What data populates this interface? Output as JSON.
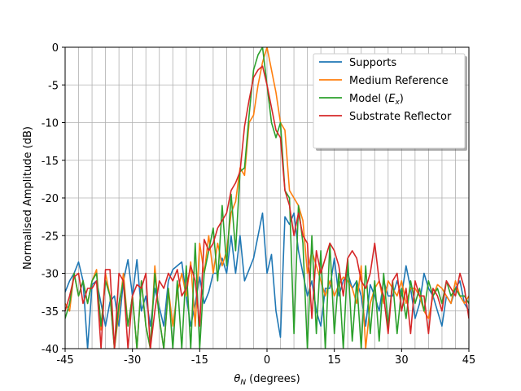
{
  "chart_data": {
    "type": "line",
    "xlabel_symbol": "θ",
    "xlabel_sub": "N",
    "xlabel_rest": " (degrees)",
    "ylabel": "Normalised Amplitude (dB)",
    "xlim": [
      -45,
      45
    ],
    "ylim": [
      -40,
      0
    ],
    "xticks": [
      -45,
      -30,
      -15,
      0,
      15,
      30,
      45
    ],
    "xtick_labels": [
      "-45",
      "-30",
      "-15",
      "0",
      "15",
      "30",
      "45"
    ],
    "yticks": [
      0,
      -5,
      -10,
      -15,
      -20,
      -25,
      -30,
      -35,
      -40
    ],
    "ytick_labels": [
      "0",
      "-5",
      "-10",
      "-15",
      "-20",
      "-25",
      "-30",
      "-35",
      "-40"
    ],
    "grid": true,
    "legend_position": "top-right",
    "series": [
      {
        "name": "Supports",
        "color": "#1f77b4",
        "x": [
          -45,
          -44,
          -43,
          -42,
          -41,
          -40,
          -39,
          -38,
          -37,
          -36,
          -35,
          -34,
          -33,
          -32,
          -31,
          -30,
          -29,
          -28,
          -27,
          -26,
          -25,
          -24,
          -23,
          -22,
          -21,
          -20,
          -19,
          -18,
          -17,
          -16,
          -15,
          -14,
          -13,
          -12,
          -11,
          -10,
          -9,
          -8,
          -7,
          -6,
          -5,
          -4,
          -3,
          -2,
          -1,
          0,
          1,
          2,
          3,
          4,
          5,
          6,
          7,
          8,
          9,
          10,
          11,
          12,
          13,
          14,
          15,
          16,
          17,
          18,
          19,
          20,
          21,
          22,
          23,
          24,
          25,
          26,
          27,
          28,
          29,
          30,
          31,
          32,
          33,
          34,
          35,
          36,
          37,
          38,
          39,
          40,
          41,
          42,
          43,
          44,
          45
        ],
        "y": [
          -32.5,
          -31,
          -30,
          -28.5,
          -31,
          -40,
          -31.5,
          -31,
          -34,
          -37,
          -33.8,
          -33,
          -37,
          -31,
          -28.2,
          -33,
          -28.2,
          -35,
          -33,
          -37,
          -32,
          -34.5,
          -37,
          -31,
          -29.5,
          -29,
          -28.5,
          -33,
          -37,
          -34,
          -30.5,
          -34,
          -32.5,
          -30,
          -30,
          -28,
          -30,
          -25,
          -30,
          -25,
          -31,
          -29.5,
          -28,
          -25,
          -22,
          -30,
          -27.5,
          -35,
          -38.5,
          -22.5,
          -23.5,
          -22,
          -27,
          -30,
          -33,
          -31,
          -35,
          -37,
          -32,
          -32,
          -28,
          -33,
          -31,
          -30,
          -32,
          -31,
          -33,
          -37,
          -31.5,
          -33,
          -35,
          -31,
          -33,
          -33,
          -31,
          -33,
          -29,
          -32,
          -36,
          -34,
          -30,
          -32,
          -33,
          -35,
          -37,
          -33,
          -34,
          -32,
          -31,
          -34,
          -35
        ]
      },
      {
        "name": "Medium Reference",
        "color": "#ff7f0e",
        "x": [
          -45,
          -44,
          -43,
          -42,
          -41,
          -40,
          -39,
          -38,
          -37,
          -36,
          -35,
          -34,
          -33,
          -32,
          -31,
          -30,
          -29,
          -28,
          -27,
          -26,
          -25,
          -24,
          -23,
          -22,
          -21,
          -20,
          -19,
          -18,
          -17,
          -16,
          -15,
          -14,
          -13,
          -12,
          -11,
          -10,
          -9,
          -8,
          -7,
          -6,
          -5,
          -4,
          -3,
          -2,
          -1,
          0,
          1,
          2,
          3,
          4,
          5,
          6,
          7,
          8,
          9,
          10,
          11,
          12,
          13,
          14,
          15,
          16,
          17,
          18,
          19,
          20,
          21,
          22,
          23,
          24,
          25,
          26,
          27,
          28,
          29,
          30,
          31,
          32,
          33,
          34,
          35,
          36,
          37,
          38,
          39,
          40,
          41,
          42,
          43,
          44,
          45
        ],
        "y": [
          -34,
          -35,
          -30,
          -33,
          -31,
          -34,
          -31,
          -29.5,
          -37.5,
          -30,
          -33,
          -40,
          -35,
          -30,
          -37,
          -33,
          -40,
          -31,
          -37,
          -40,
          -29,
          -36,
          -40,
          -32,
          -37,
          -32.5,
          -30,
          -33,
          -28.5,
          -37,
          -26,
          -30,
          -25,
          -30,
          -26,
          -29,
          -27,
          -22,
          -20.5,
          -16,
          -17,
          -10,
          -9,
          -5,
          -2,
          0,
          -3,
          -6,
          -10,
          -11,
          -19,
          -20,
          -21,
          -23,
          -30,
          -27,
          -29,
          -31,
          -33,
          -31,
          -33,
          -31.5,
          -30.5,
          -31,
          -32,
          -34,
          -29,
          -40,
          -34,
          -32,
          -31,
          -34,
          -31,
          -32,
          -33,
          -31,
          -34,
          -32,
          -32,
          -33,
          -35,
          -36,
          -33,
          -31.5,
          -32,
          -33,
          -34,
          -31,
          -33,
          -34,
          -33
        ]
      },
      {
        "name": "Model (E_x)",
        "color": "#2ca02c",
        "x": [
          -45,
          -44,
          -43,
          -42,
          -41,
          -40,
          -39,
          -38,
          -37,
          -36,
          -35,
          -34,
          -33,
          -32,
          -31,
          -30,
          -29,
          -28,
          -27,
          -26,
          -25,
          -24,
          -23,
          -22,
          -21,
          -20,
          -19,
          -18,
          -17,
          -16,
          -15,
          -14,
          -13,
          -12,
          -11,
          -10,
          -9,
          -8,
          -7,
          -6,
          -5,
          -4,
          -3,
          -2,
          -1,
          0,
          1,
          2,
          3,
          4,
          5,
          6,
          7,
          8,
          9,
          10,
          11,
          12,
          13,
          14,
          15,
          16,
          17,
          18,
          19,
          20,
          21,
          22,
          23,
          24,
          25,
          26,
          27,
          28,
          29,
          30,
          31,
          32,
          33,
          34,
          35,
          36,
          37,
          38,
          39,
          40,
          41,
          42,
          43,
          44,
          45
        ],
        "y": [
          -36,
          -34,
          -30,
          -33,
          -31,
          -34,
          -31,
          -30,
          -37,
          -31,
          -33,
          -40,
          -34,
          -31,
          -37,
          -33,
          -40,
          -31,
          -37,
          -40,
          -30,
          -36,
          -40,
          -32,
          -40,
          -31,
          -40,
          -29,
          -40,
          -26,
          -40,
          -30,
          -27,
          -24,
          -31,
          -21,
          -29,
          -19.5,
          -27,
          -16.5,
          -16,
          -9,
          -3,
          -1,
          0,
          -5,
          -10,
          -12,
          -10,
          -19,
          -20,
          -38,
          -21,
          -26,
          -40,
          -25,
          -38,
          -27,
          -40,
          -26,
          -38,
          -30,
          -40,
          -28,
          -39,
          -31,
          -40,
          -29,
          -38,
          -31,
          -39,
          -30,
          -37,
          -31,
          -38,
          -32,
          -36,
          -31,
          -34,
          -32,
          -35,
          -31,
          -33,
          -32,
          -34,
          -31,
          -33,
          -32,
          -33,
          -33,
          -34
        ]
      },
      {
        "name": "Substrate Reflector",
        "color": "#d62728",
        "x": [
          -45,
          -44,
          -43,
          -42,
          -41,
          -40,
          -39,
          -38,
          -37,
          -36,
          -35,
          -34,
          -33,
          -32,
          -31,
          -30,
          -29,
          -28,
          -27,
          -26,
          -25,
          -24,
          -23,
          -22,
          -21,
          -20,
          -19,
          -18,
          -17,
          -16,
          -15,
          -14,
          -13,
          -12,
          -11,
          -10,
          -9,
          -8,
          -7,
          -6,
          -5,
          -4,
          -3,
          -2,
          -1,
          0,
          1,
          2,
          3,
          4,
          5,
          6,
          7,
          8,
          9,
          10,
          11,
          12,
          13,
          14,
          15,
          16,
          17,
          18,
          19,
          20,
          21,
          22,
          23,
          24,
          25,
          26,
          27,
          28,
          29,
          30,
          31,
          32,
          33,
          34,
          35,
          36,
          37,
          38,
          39,
          40,
          41,
          42,
          43,
          44,
          45
        ],
        "y": [
          -35,
          -33,
          -30.5,
          -30,
          -34,
          -32,
          -32,
          -31,
          -40,
          -29.5,
          -29.5,
          -40,
          -30,
          -31,
          -40,
          -33,
          -31.5,
          -32,
          -30,
          -40,
          -35,
          -31,
          -32,
          -30,
          -31,
          -29.5,
          -33,
          -32,
          -29,
          -31,
          -37,
          -25.5,
          -27,
          -26,
          -24,
          -23,
          -22,
          -19,
          -18,
          -16.5,
          -10.5,
          -7,
          -4,
          -3,
          -2.5,
          -5,
          -8,
          -11,
          -12,
          -19,
          -21,
          -25,
          -22,
          -25,
          -26,
          -36,
          -27,
          -30,
          -28,
          -26,
          -27,
          -29,
          -33,
          -28,
          -27,
          -28,
          -31,
          -32,
          -30,
          -26,
          -31,
          -33,
          -38,
          -31,
          -30,
          -35,
          -32,
          -38,
          -31,
          -33,
          -33,
          -38,
          -32,
          -33,
          -35,
          -31,
          -32,
          -33,
          -30,
          -32,
          -36
        ]
      }
    ]
  }
}
